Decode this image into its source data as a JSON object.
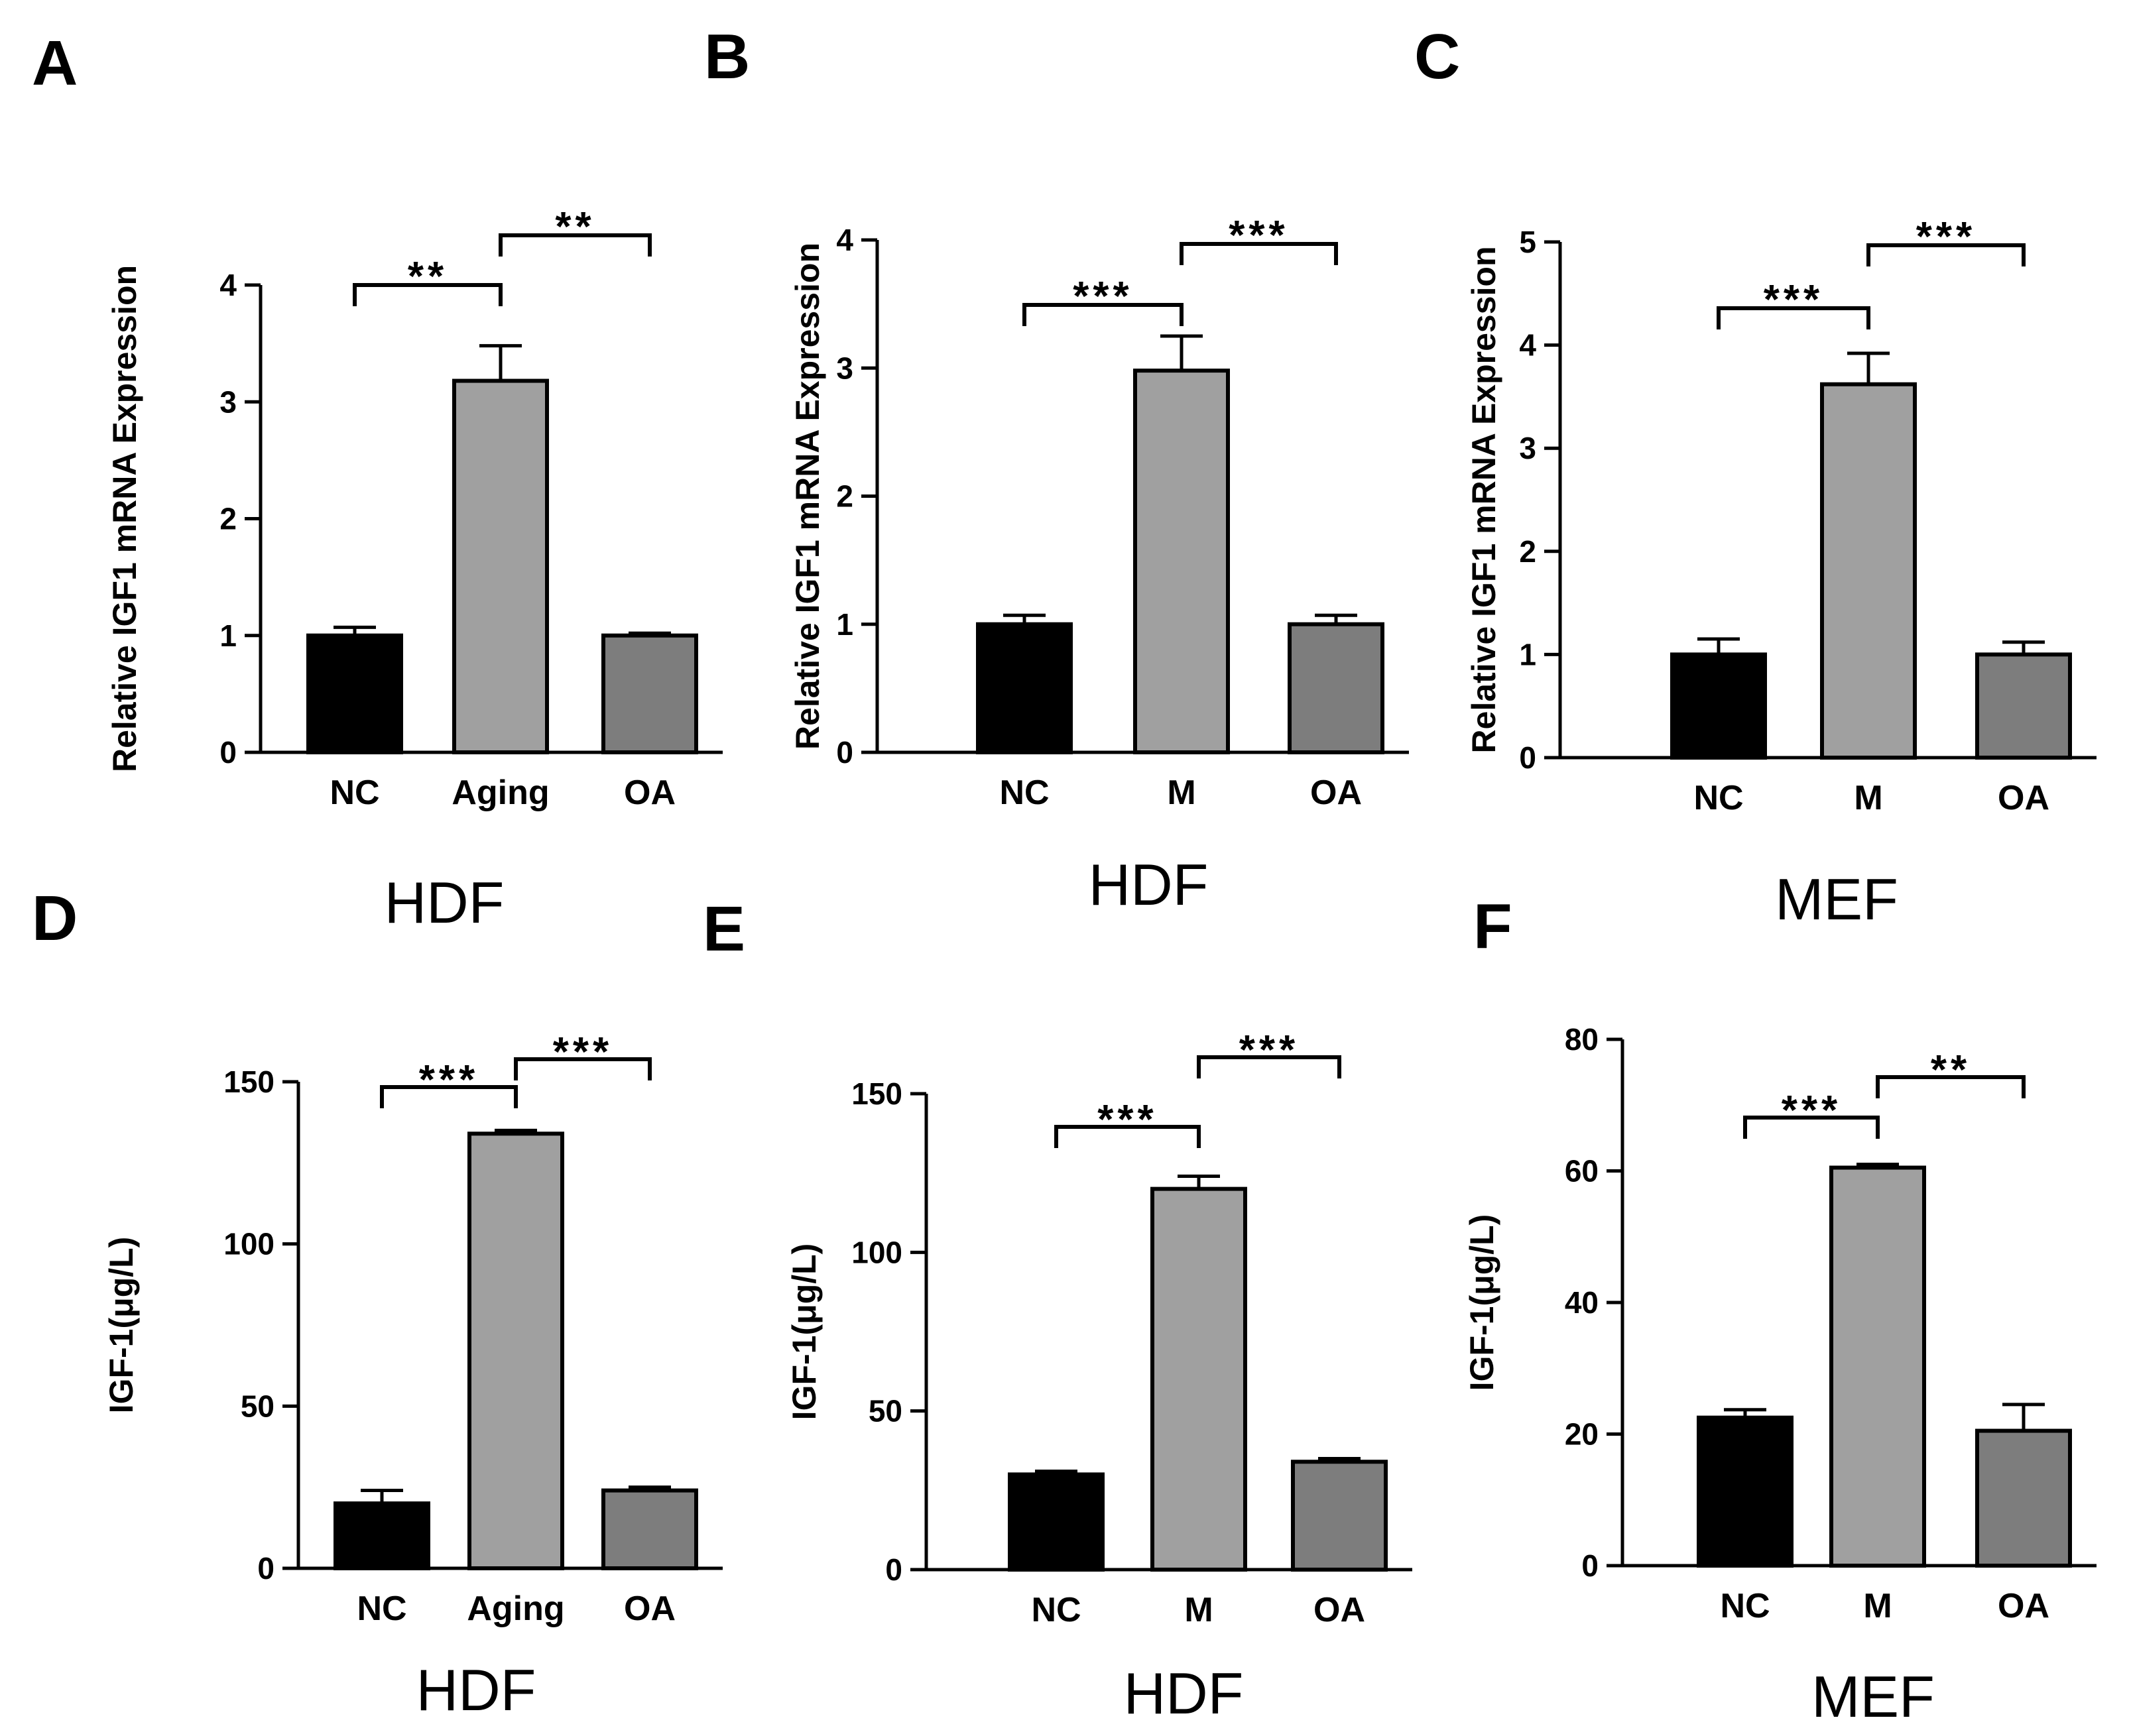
{
  "chart_data": [
    {
      "type": "bar",
      "panel": "A",
      "ylabel": "Relative IGF1 mRNA Expression",
      "cell_label": "HDF",
      "categories": [
        "NC",
        "Aging",
        "OA"
      ],
      "values": [
        1.0,
        3.18,
        1.0
      ],
      "errors": [
        0.07,
        0.3,
        0.02
      ],
      "ylim": [
        0,
        4
      ],
      "yticks": [
        "0",
        "1",
        "2",
        "3",
        "4"
      ],
      "colors": [
        "#000000",
        "#a0a0a0",
        "#7d7d7d"
      ],
      "significance": [
        {
          "from": 0,
          "to": 1,
          "label": "**"
        },
        {
          "from": 1,
          "to": 2,
          "label": "**"
        }
      ]
    },
    {
      "type": "bar",
      "panel": "B",
      "ylabel": "Relative IGF1 mRNA Expression",
      "cell_label": "HDF",
      "categories": [
        "NC",
        "M",
        "OA"
      ],
      "values": [
        1.0,
        2.98,
        1.0
      ],
      "errors": [
        0.07,
        0.27,
        0.07
      ],
      "ylim": [
        0,
        4
      ],
      "yticks": [
        "0",
        "1",
        "2",
        "3",
        "4"
      ],
      "colors": [
        "#000000",
        "#a0a0a0",
        "#7d7d7d"
      ],
      "significance": [
        {
          "from": 0,
          "to": 1,
          "label": "***"
        },
        {
          "from": 1,
          "to": 2,
          "label": "***"
        }
      ]
    },
    {
      "type": "bar",
      "panel": "C",
      "ylabel": "Relative IGF1 mRNA Expression",
      "cell_label": "MEF",
      "categories": [
        "NC",
        "M",
        "OA"
      ],
      "values": [
        1.0,
        3.62,
        1.0
      ],
      "errors": [
        0.15,
        0.3,
        0.12
      ],
      "ylim": [
        0,
        5
      ],
      "yticks": [
        "0",
        "1",
        "2",
        "3",
        "4",
        "5"
      ],
      "colors": [
        "#000000",
        "#a0a0a0",
        "#7d7d7d"
      ],
      "significance": [
        {
          "from": 0,
          "to": 1,
          "label": "***"
        },
        {
          "from": 1,
          "to": 2,
          "label": "***"
        }
      ]
    },
    {
      "type": "bar",
      "panel": "D",
      "ylabel": "IGF-1(μg/L)",
      "cell_label": "HDF",
      "categories": [
        "NC",
        "Aging",
        "OA"
      ],
      "values": [
        20,
        134,
        24
      ],
      "errors": [
        4,
        1,
        1
      ],
      "ylim": [
        0,
        150
      ],
      "yticks": [
        "0",
        "50",
        "100",
        "150"
      ],
      "colors": [
        "#000000",
        "#a0a0a0",
        "#7d7d7d"
      ],
      "significance": [
        {
          "from": 0,
          "to": 1,
          "label": "***"
        },
        {
          "from": 1,
          "to": 2,
          "label": "***"
        }
      ]
    },
    {
      "type": "bar",
      "panel": "E",
      "ylabel": "IGF-1(μg/L)",
      "cell_label": "HDF",
      "categories": [
        "NC",
        "M",
        "OA"
      ],
      "values": [
        30,
        120,
        34
      ],
      "errors": [
        1,
        4,
        1
      ],
      "ylim": [
        0,
        150
      ],
      "yticks": [
        "0",
        "50",
        "100",
        "150"
      ],
      "colors": [
        "#000000",
        "#a0a0a0",
        "#7d7d7d"
      ],
      "significance": [
        {
          "from": 0,
          "to": 1,
          "label": "***"
        },
        {
          "from": 1,
          "to": 2,
          "label": "***"
        }
      ]
    },
    {
      "type": "bar",
      "panel": "F",
      "ylabel": "IGF-1(μg/L)",
      "cell_label": "MEF",
      "categories": [
        "NC",
        "M",
        "OA"
      ],
      "values": [
        22.5,
        60.5,
        20.5
      ],
      "errors": [
        1.2,
        0.5,
        4
      ],
      "ylim": [
        0,
        80
      ],
      "yticks": [
        "0",
        "20",
        "40",
        "60",
        "80"
      ],
      "colors": [
        "#000000",
        "#a0a0a0",
        "#7d7d7d"
      ],
      "significance": [
        {
          "from": 0,
          "to": 1,
          "label": "***"
        },
        {
          "from": 1,
          "to": 2,
          "label": "**"
        }
      ]
    }
  ]
}
